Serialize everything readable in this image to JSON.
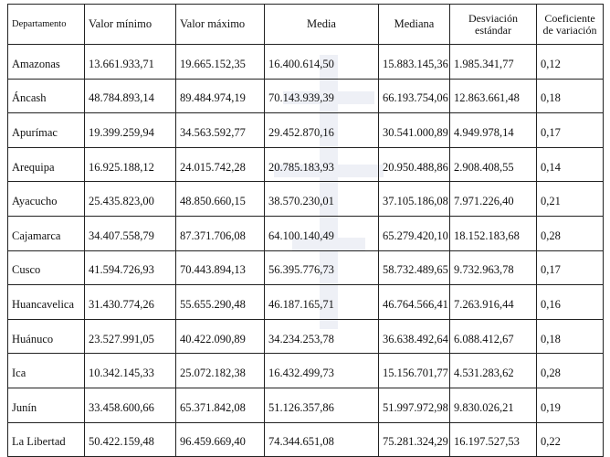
{
  "table": {
    "headers": {
      "departamento": "Departamento",
      "valor_minimo": "Valor mínimo",
      "valor_maximo": "Valor máximo",
      "media": "Media",
      "mediana": "Mediana",
      "desviacion": "Desviación estándar",
      "coeficiente": "Coeficiente de variación"
    },
    "rows": [
      {
        "departamento": "Amazonas",
        "min": "13.661.933,71",
        "max": "19.665.152,35",
        "media": "16.400.614,50",
        "mediana": "15.883.145,36",
        "desv": "1.985.341,77",
        "cv": "0,12"
      },
      {
        "departamento": "Áncash",
        "min": "48.784.893,14",
        "max": "89.484.974,19",
        "media": "70.143.939,39",
        "mediana": "66.193.754,06",
        "desv": "12.863.661,48",
        "cv": "0,18"
      },
      {
        "departamento": "Apurímac",
        "min": "19.399.259,94",
        "max": "34.563.592,77",
        "media": "29.452.870,16",
        "mediana": "30.541.000,89",
        "desv": "4.949.978,14",
        "cv": "0,17"
      },
      {
        "departamento": "Arequipa",
        "min": "16.925.188,12",
        "max": "24.015.742,28",
        "media": "20.785.183,93",
        "mediana": "20.950.488,86",
        "desv": "2.908.408,55",
        "cv": "0,14"
      },
      {
        "departamento": "Ayacucho",
        "min": "25.435.823,00",
        "max": "48.850.660,15",
        "media": "38.570.230,01",
        "mediana": "37.105.186,08",
        "desv": "7.971.226,40",
        "cv": "0,21"
      },
      {
        "departamento": "Cajamarca",
        "min": "34.407.558,79",
        "max": "87.371.706,08",
        "media": "64.100.140,49",
        "mediana": "65.279.420,10",
        "desv": "18.152.183,68",
        "cv": "0,28"
      },
      {
        "departamento": "Cusco",
        "min": "41.594.726,93",
        "max": "70.443.894,13",
        "media": "56.395.776,73",
        "mediana": "58.732.489,65",
        "desv": "9.732.963,78",
        "cv": "0,17"
      },
      {
        "departamento": "Huancavelica",
        "min": "31.430.774,26",
        "max": "55.655.290,48",
        "media": "46.187.165,71",
        "mediana": "46.764.566,41",
        "desv": "7.263.916,44",
        "cv": "0,16"
      },
      {
        "departamento": "Huánuco",
        "min": "23.527.991,05",
        "max": "40.422.090,89",
        "media": "34.234.253,78",
        "mediana": "36.638.492,64",
        "desv": "6.088.412,67",
        "cv": "0,18"
      },
      {
        "departamento": "Ica",
        "min": "10.342.145,33",
        "max": "25.072.182,38",
        "media": "16.432.499,73",
        "mediana": "15.156.701,77",
        "desv": "4.531.283,62",
        "cv": "0,28"
      },
      {
        "departamento": "Junín",
        "min": "33.458.600,66",
        "max": "65.371.842,08",
        "media": "51.126.357,86",
        "mediana": "51.997.972,98",
        "desv": "9.830.026,21",
        "cv": "0,19"
      },
      {
        "departamento": "La Libertad",
        "min": "50.422.159,48",
        "max": "96.459.669,40",
        "media": "74.344.651,08",
        "mediana": "75.281.324,29",
        "desv": "16.197.527,53",
        "cv": "0,22"
      }
    ]
  },
  "colors": {
    "border": "#222222",
    "text": "#111111",
    "watermark": "#1a3a8a"
  }
}
